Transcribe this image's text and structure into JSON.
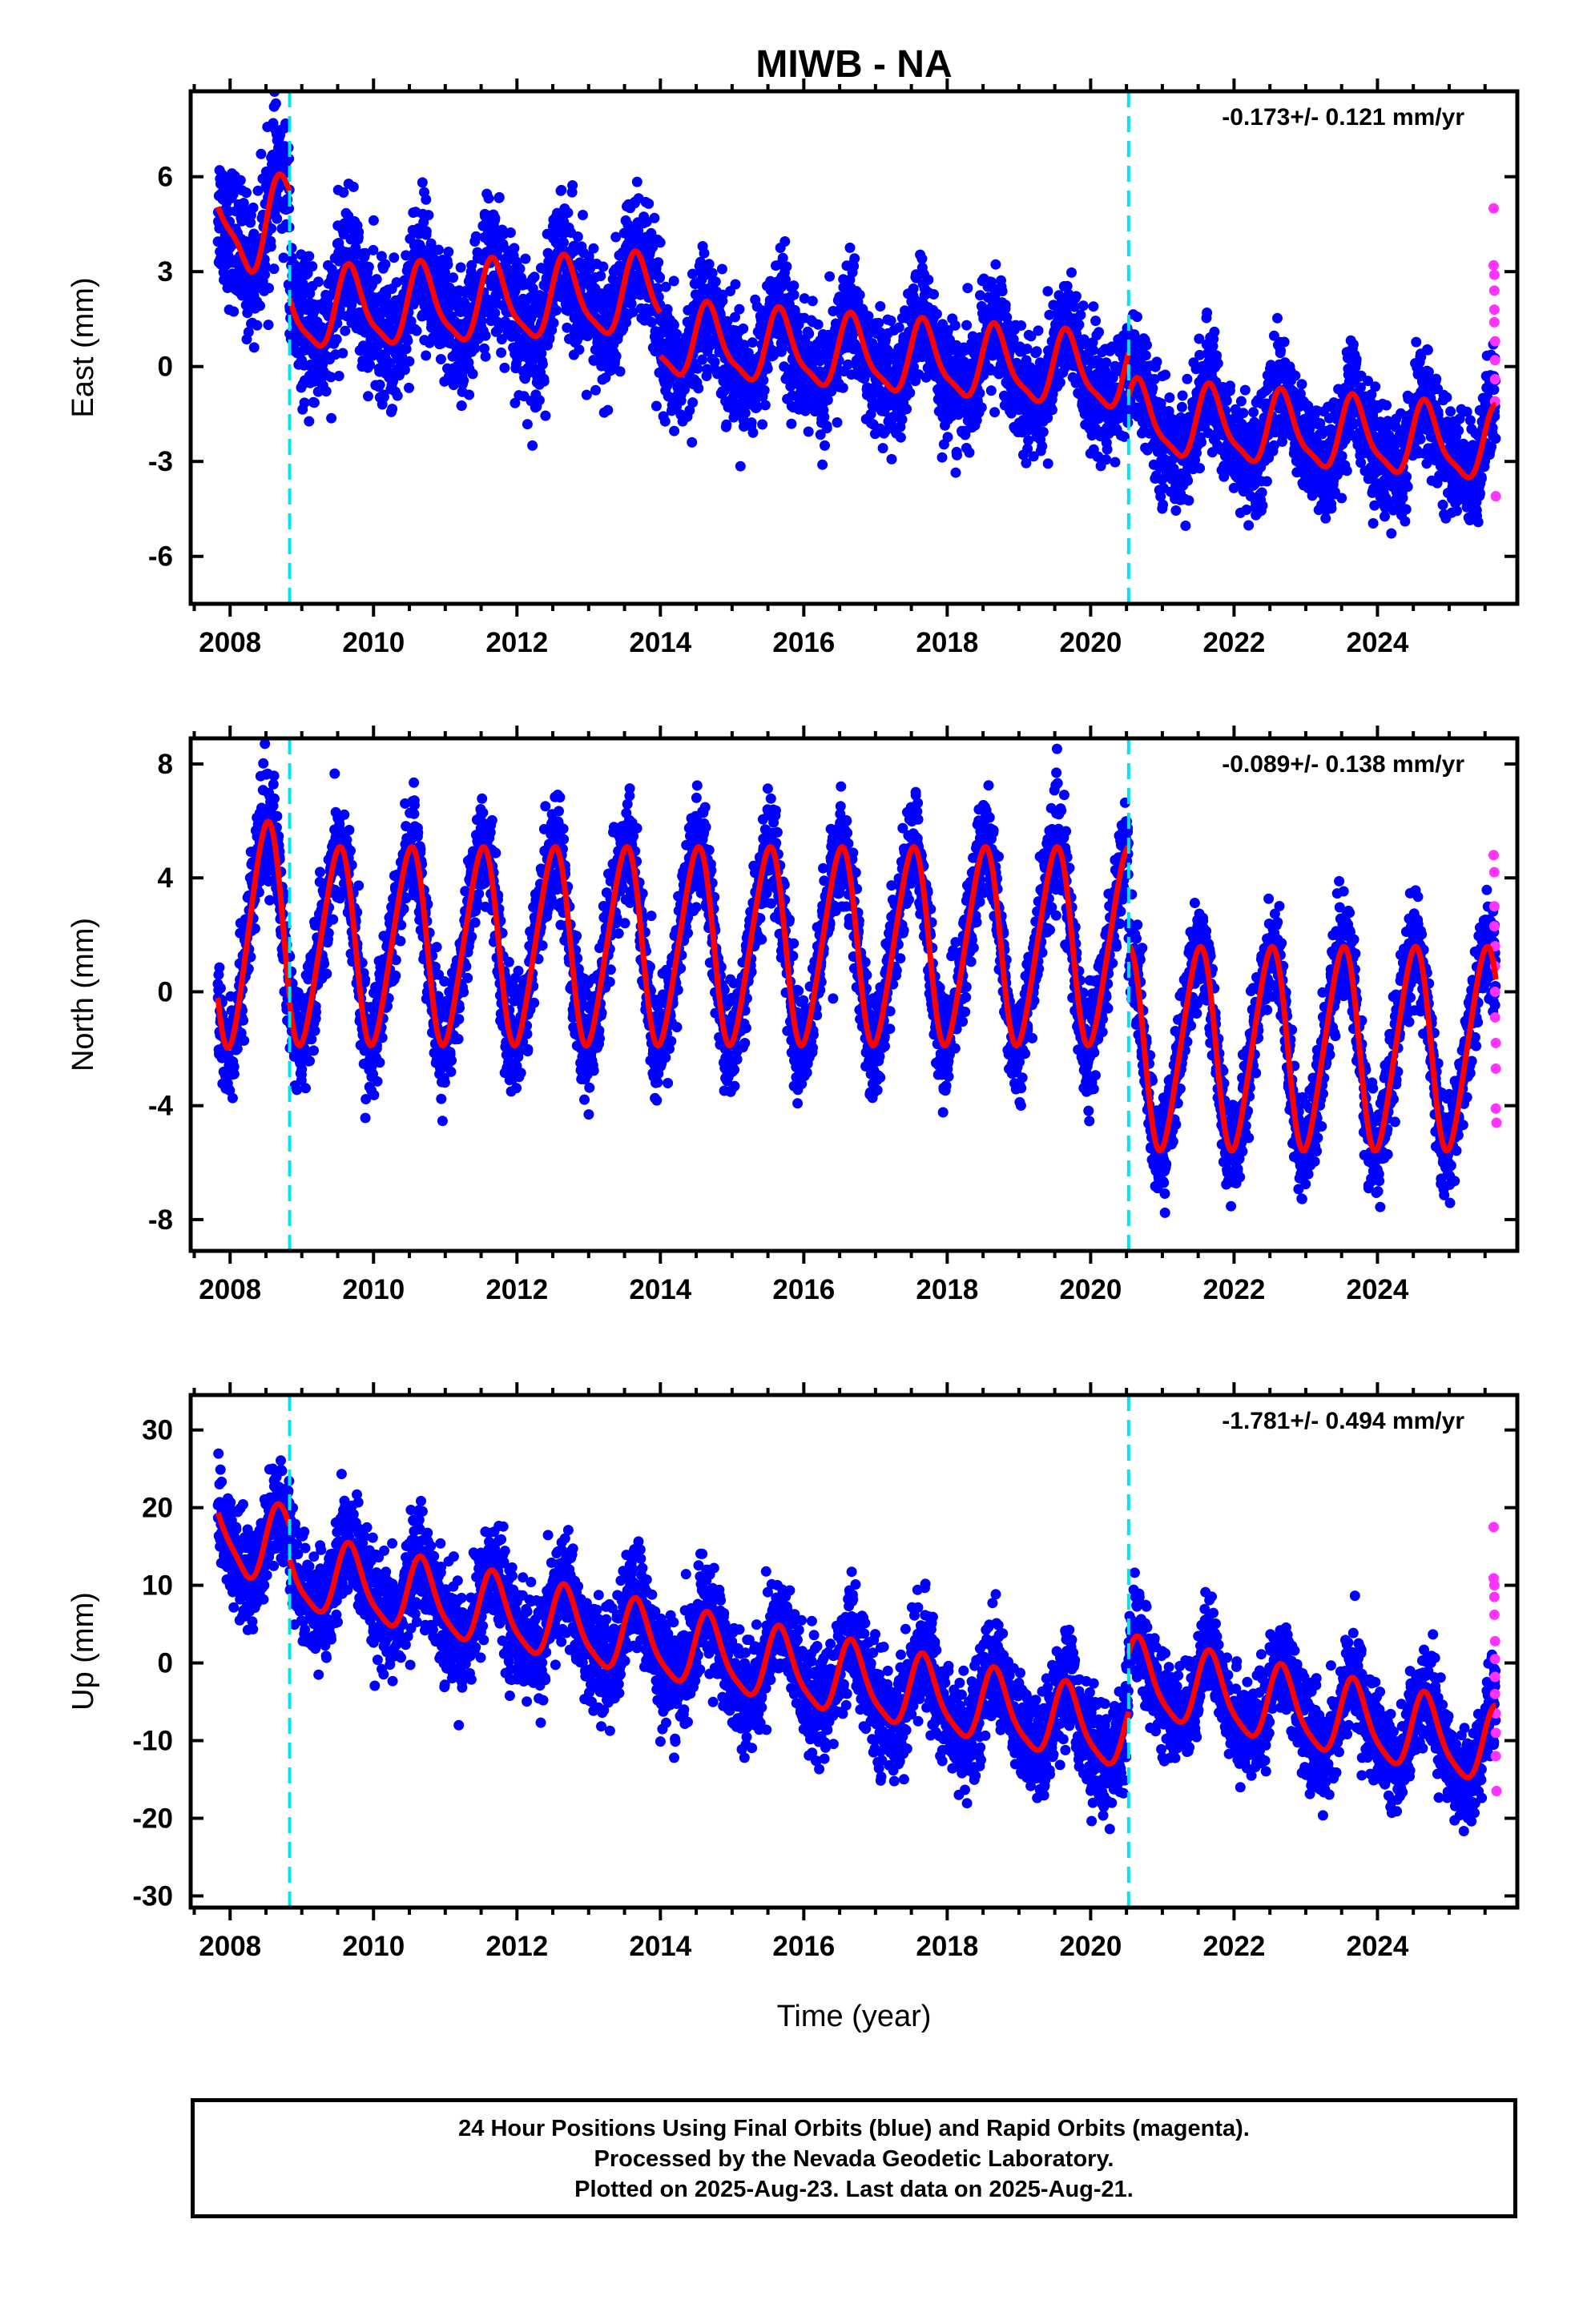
{
  "title": "MIWB - NA",
  "xlabel": "Time (year)",
  "colors": {
    "final_orbits": "#0000ff",
    "rapid_orbits": "#ff33ff",
    "model": "#ff0000",
    "discontinuity": "#00e5ee"
  },
  "chart_data": [
    {
      "type": "scatter",
      "component": "east",
      "ylabel": "East (mm)",
      "rate_label": "-0.173+/- 0.121 mm/yr",
      "xlim": [
        2007.45,
        2025.95
      ],
      "ylim": [
        -7.5,
        8.7
      ],
      "yticks": [
        -6,
        -3,
        0,
        3,
        6
      ],
      "xticks": [
        2008,
        2010,
        2012,
        2014,
        2016,
        2018,
        2020,
        2022,
        2024
      ],
      "discontinuities": [
        2008.83,
        2020.53
      ],
      "series": [
        {
          "segment": [
            2007.83,
            2008.83
          ],
          "offset": 4.2,
          "trend": 0.5,
          "annual_amp": 1.3,
          "annual_phase": 0.75,
          "semiannual_amp": 0.35,
          "scatter": 1.4
        },
        {
          "segment": [
            2008.83,
            2014.0
          ],
          "offset": 1.7,
          "trend": 0.1,
          "annual_amp": 1.2,
          "annual_phase": 0.68,
          "semiannual_amp": 0.3,
          "scatter": 1.4
        },
        {
          "segment": [
            2014.0,
            2020.53
          ],
          "offset": 0.8,
          "trend": -0.17,
          "annual_amp": 1.1,
          "annual_phase": 0.68,
          "semiannual_amp": 0.3,
          "scatter": 1.2
        },
        {
          "segment": [
            2020.53,
            2025.65
          ],
          "offset": -1.7,
          "trend": -0.17,
          "annual_amp": 1.1,
          "annual_phase": 0.68,
          "semiannual_amp": 0.3,
          "scatter": 1.1
        }
      ],
      "rapid": [
        [
          2025.62,
          5.0
        ],
        [
          2025.62,
          3.2
        ],
        [
          2025.63,
          2.9
        ],
        [
          2025.63,
          2.4
        ],
        [
          2025.63,
          1.8
        ],
        [
          2025.63,
          1.4
        ],
        [
          2025.64,
          0.8
        ],
        [
          2025.64,
          0.2
        ],
        [
          2025.64,
          -0.4
        ],
        [
          2025.64,
          -1.1
        ],
        [
          2025.65,
          -4.1
        ]
      ]
    },
    {
      "type": "scatter",
      "component": "north",
      "ylabel": "North (mm)",
      "rate_label": "-0.089+/- 0.138 mm/yr",
      "xlim": [
        2007.45,
        2025.95
      ],
      "ylim": [
        -9.1,
        8.9
      ],
      "yticks": [
        -8,
        -4,
        0,
        4,
        8
      ],
      "xticks": [
        2008,
        2010,
        2012,
        2014,
        2016,
        2018,
        2020,
        2022,
        2024
      ],
      "discontinuities": [
        2008.83,
        2020.53
      ],
      "series": [
        {
          "segment": [
            2007.83,
            2008.83
          ],
          "offset": 2.0,
          "trend": 0.0,
          "annual_amp": 3.9,
          "annual_phase": 0.5,
          "semiannual_amp": 0.4,
          "scatter": 1.3
        },
        {
          "segment": [
            2008.83,
            2020.53
          ],
          "offset": 1.6,
          "trend": 0.0,
          "annual_amp": 3.4,
          "annual_phase": 0.5,
          "semiannual_amp": 0.4,
          "scatter": 1.2
        },
        {
          "segment": [
            2020.53,
            2025.65
          ],
          "offset": -2.0,
          "trend": 0.0,
          "annual_amp": 3.5,
          "annual_phase": 0.5,
          "semiannual_amp": 0.4,
          "scatter": 1.1
        }
      ],
      "rapid": [
        [
          2025.62,
          4.8
        ],
        [
          2025.63,
          4.2
        ],
        [
          2025.63,
          3.0
        ],
        [
          2025.63,
          2.3
        ],
        [
          2025.64,
          1.6
        ],
        [
          2025.64,
          0.9
        ],
        [
          2025.64,
          0.0
        ],
        [
          2025.64,
          -0.9
        ],
        [
          2025.65,
          -1.8
        ],
        [
          2025.65,
          -2.7
        ],
        [
          2025.65,
          -4.1
        ],
        [
          2025.66,
          -4.6
        ]
      ]
    },
    {
      "type": "scatter",
      "component": "up",
      "ylabel": "Up (mm)",
      "rate_label": "-1.781+/- 0.494 mm/yr",
      "xlim": [
        2007.45,
        2025.95
      ],
      "ylim": [
        -31.5,
        34.5
      ],
      "yticks": [
        -30,
        -20,
        -10,
        0,
        10,
        20,
        30
      ],
      "xticks": [
        2008,
        2010,
        2012,
        2014,
        2016,
        2018,
        2020,
        2022,
        2024
      ],
      "discontinuities": [
        2008.83,
        2020.53
      ],
      "series": [
        {
          "segment": [
            2007.83,
            2008.83
          ],
          "offset": 16.5,
          "trend": -1.7,
          "annual_amp": 4.8,
          "annual_phase": 0.72,
          "semiannual_amp": 1.0,
          "scatter": 4.2
        },
        {
          "segment": [
            2008.83,
            2020.53
          ],
          "offset": 11.5,
          "trend": -1.78,
          "annual_amp": 4.6,
          "annual_phase": 0.68,
          "semiannual_amp": 1.0,
          "scatter": 4.5
        },
        {
          "segment": [
            2020.53,
            2025.65
          ],
          "offset": -2.0,
          "trend": -1.78,
          "annual_amp": 4.8,
          "annual_phase": 0.68,
          "semiannual_amp": 1.0,
          "scatter": 4.0
        }
      ],
      "rapid": [
        [
          2025.62,
          17.5
        ],
        [
          2025.62,
          10.9
        ],
        [
          2025.63,
          10.0
        ],
        [
          2025.63,
          8.5
        ],
        [
          2025.63,
          6.2
        ],
        [
          2025.64,
          2.8
        ],
        [
          2025.64,
          0.5
        ],
        [
          2025.64,
          -1.8
        ],
        [
          2025.64,
          -4.0
        ],
        [
          2025.65,
          -6.5
        ],
        [
          2025.65,
          -9.0
        ],
        [
          2025.65,
          -12.0
        ],
        [
          2025.66,
          -16.5
        ]
      ]
    }
  ],
  "footer": {
    "line1": "24 Hour Positions Using Final Orbits (blue) and Rapid Orbits (magenta).",
    "line2": "Processed by the Nevada Geodetic Laboratory.",
    "line3": "Plotted on 2025-Aug-23. Last data on 2025-Aug-21."
  }
}
